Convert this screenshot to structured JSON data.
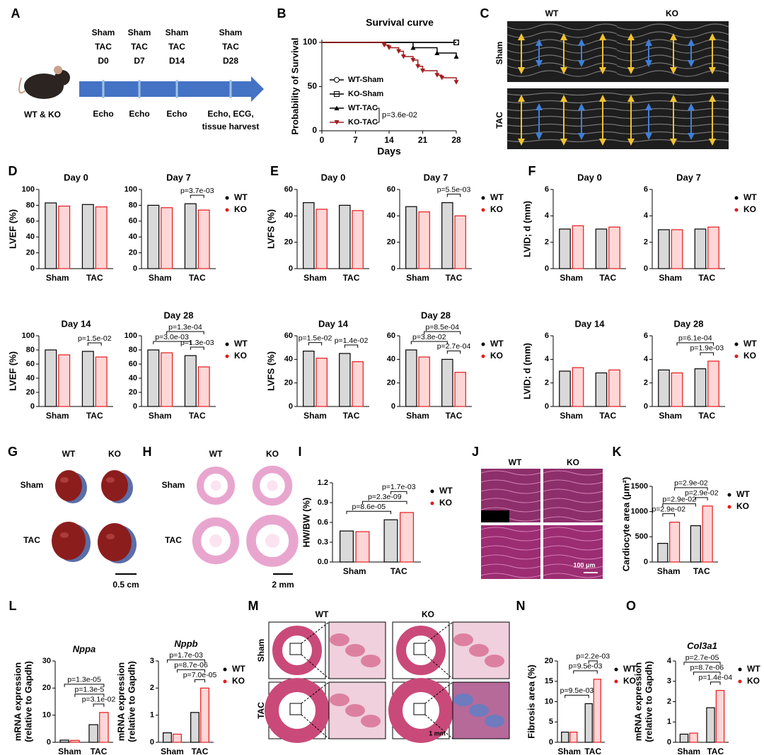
{
  "panel_labels": [
    "A",
    "B",
    "C",
    "D",
    "E",
    "F",
    "G",
    "H",
    "I",
    "J",
    "K",
    "L",
    "M",
    "N",
    "O"
  ],
  "timeline": {
    "group": "WT & KO",
    "points": [
      {
        "labels": [
          "Sham",
          "TAC",
          "D0"
        ],
        "below": [
          "Echo"
        ]
      },
      {
        "labels": [
          "Sham",
          "TAC",
          "D7"
        ],
        "below": [
          "Echo"
        ]
      },
      {
        "labels": [
          "Sham",
          "TAC",
          "D14"
        ],
        "below": [
          "Echo"
        ]
      },
      {
        "labels": [
          "Sham",
          "TAC",
          "D28"
        ],
        "below": [
          "Echo, ECG,",
          "tissue harvest"
        ]
      }
    ]
  },
  "echo": {
    "columns": [
      "WT",
      "KO"
    ],
    "rows": [
      "Sham",
      "TAC"
    ]
  },
  "hearts": {
    "columns": [
      "WT",
      "KO"
    ],
    "rows": [
      "Sham",
      "TAC"
    ],
    "scale": "0.5 cm"
  },
  "sections": {
    "columns": [
      "WT",
      "KO"
    ],
    "rows": [
      "Sham",
      "TAC"
    ],
    "scale": "2 mm"
  },
  "histology": {
    "columns": [
      "WT",
      "KO"
    ],
    "rows": [
      "Sham",
      "TAC"
    ],
    "scale": "100 μm"
  },
  "trichrome": {
    "columns": [
      "WT",
      "KO"
    ],
    "rows": [
      "Sham",
      "TAC"
    ],
    "scale": "1 mm"
  },
  "chart_data": [
    {
      "type": "line",
      "title": "Survival curve",
      "xlabel": "Days",
      "ylabel": "Probability of Survival",
      "xlim": [
        0,
        28
      ],
      "xticks": [
        0,
        7,
        14,
        21,
        28
      ],
      "ylim": [
        0,
        100
      ],
      "yticks": [
        0,
        50,
        100
      ],
      "series": [
        {
          "name": "WT-Sham",
          "color": "#000000",
          "marker": "circle",
          "x": [
            0,
            28
          ],
          "values": [
            100,
            100
          ]
        },
        {
          "name": "KO-Sham",
          "color": "#000000",
          "marker": "square",
          "x": [
            0,
            28
          ],
          "values": [
            100,
            100
          ]
        },
        {
          "name": "WT-TAC",
          "color": "#000000",
          "marker": "triangle",
          "x": [
            0,
            19,
            24,
            28
          ],
          "values": [
            100,
            94,
            88,
            84
          ]
        },
        {
          "name": "KO-TAC",
          "color": "#a11d21",
          "marker": "triangle-down",
          "x": [
            0,
            13,
            14,
            16,
            17,
            19,
            20,
            21,
            24,
            25,
            28
          ],
          "values": [
            100,
            97,
            94,
            90,
            84,
            80,
            73,
            68,
            63,
            60,
            55
          ]
        }
      ],
      "annotation": {
        "text": "p=3.6e-02",
        "between": [
          2,
          3
        ]
      }
    },
    {
      "type": "bar",
      "title": "Day 0",
      "ylabel": "LVEF (%)",
      "categories": [
        "Sham",
        "TAC"
      ],
      "ylim": [
        0,
        100
      ],
      "yticks": [
        0,
        20,
        40,
        60,
        80,
        100
      ],
      "series": [
        {
          "color": "#000000",
          "fill": "#d9d9d9",
          "values": [
            83,
            81
          ]
        },
        {
          "color": "#e41a1c",
          "fill": "#ffd6d6",
          "values": [
            79,
            78
          ]
        }
      ],
      "annotations": []
    },
    {
      "type": "bar",
      "title": "Day 7",
      "categories": [
        "Sham",
        "TAC"
      ],
      "ylim": [
        0,
        100
      ],
      "yticks": [
        0,
        20,
        40,
        60,
        80,
        100
      ],
      "series": [
        {
          "name": "WT",
          "color": "#000000",
          "fill": "#d9d9d9",
          "values": [
            80,
            82
          ]
        },
        {
          "name": "KO",
          "color": "#e41a1c",
          "fill": "#ffd6d6",
          "values": [
            77,
            74
          ]
        }
      ],
      "annotations": [
        {
          "text": "p=3.7e-03",
          "between": [
            2,
            3
          ]
        }
      ]
    },
    {
      "type": "bar",
      "title": "Day 14",
      "ylabel": "LVEF (%)",
      "categories": [
        "Sham",
        "TAC"
      ],
      "ylim": [
        0,
        100
      ],
      "yticks": [
        0,
        20,
        40,
        60,
        80,
        100
      ],
      "series": [
        {
          "color": "#000000",
          "fill": "#d9d9d9",
          "values": [
            80,
            78
          ]
        },
        {
          "color": "#e41a1c",
          "fill": "#ffd6d6",
          "values": [
            73,
            70
          ]
        }
      ],
      "annotations": [
        {
          "text": "p=1.5e-02",
          "between": [
            2,
            3
          ]
        }
      ]
    },
    {
      "type": "bar",
      "title": "Day 28",
      "categories": [
        "Sham",
        "TAC"
      ],
      "ylim": [
        0,
        100
      ],
      "yticks": [
        0,
        20,
        40,
        60,
        80,
        100
      ],
      "series": [
        {
          "name": "WT",
          "color": "#000000",
          "fill": "#d9d9d9",
          "values": [
            80,
            72
          ]
        },
        {
          "name": "KO",
          "color": "#e41a1c",
          "fill": "#ffd6d6",
          "values": [
            76,
            56
          ]
        }
      ],
      "annotations": [
        {
          "text": "p=3.0e-03",
          "between": [
            0,
            2
          ]
        },
        {
          "text": "p=1.3e-03",
          "between": [
            2,
            3
          ]
        },
        {
          "text": "p=1.3e-04",
          "between": [
            1,
            3
          ]
        }
      ]
    },
    {
      "type": "bar",
      "title": "Day 0",
      "ylabel": "LVFS (%)",
      "categories": [
        "Sham",
        "TAC"
      ],
      "ylim": [
        0,
        60
      ],
      "yticks": [
        0,
        20,
        40,
        60
      ],
      "series": [
        {
          "color": "#000000",
          "fill": "#d9d9d9",
          "values": [
            50,
            48
          ]
        },
        {
          "color": "#e41a1c",
          "fill": "#ffd6d6",
          "values": [
            45,
            44
          ]
        }
      ],
      "annotations": []
    },
    {
      "type": "bar",
      "title": "Day 7",
      "categories": [
        "Sham",
        "TAC"
      ],
      "ylim": [
        0,
        60
      ],
      "yticks": [
        0,
        20,
        40,
        60
      ],
      "series": [
        {
          "name": "WT",
          "color": "#000000",
          "fill": "#d9d9d9",
          "values": [
            47,
            50
          ]
        },
        {
          "name": "KO",
          "color": "#e41a1c",
          "fill": "#ffd6d6",
          "values": [
            43,
            40
          ]
        }
      ],
      "annotations": [
        {
          "text": "p=5.5e-03",
          "between": [
            2,
            3
          ]
        }
      ]
    },
    {
      "type": "bar",
      "title": "Day 14",
      "ylabel": "LVFS (%)",
      "categories": [
        "Sham",
        "TAC"
      ],
      "ylim": [
        0,
        60
      ],
      "yticks": [
        0,
        20,
        40,
        60
      ],
      "series": [
        {
          "color": "#000000",
          "fill": "#d9d9d9",
          "values": [
            47,
            45
          ]
        },
        {
          "color": "#e41a1c",
          "fill": "#ffd6d6",
          "values": [
            41,
            38
          ]
        }
      ],
      "annotations": [
        {
          "text": "p=1.5e-02",
          "between": [
            0,
            1
          ]
        },
        {
          "text": "p=1.4e-02",
          "between": [
            2,
            3
          ]
        }
      ]
    },
    {
      "type": "bar",
      "title": "Day 28",
      "categories": [
        "Sham",
        "TAC"
      ],
      "ylim": [
        0,
        60
      ],
      "yticks": [
        0,
        20,
        40,
        60
      ],
      "series": [
        {
          "name": "WT",
          "color": "#000000",
          "fill": "#d9d9d9",
          "values": [
            48,
            40
          ]
        },
        {
          "name": "KO",
          "color": "#e41a1c",
          "fill": "#ffd6d6",
          "values": [
            42,
            29
          ]
        }
      ],
      "annotations": [
        {
          "text": "p=3.8e-02",
          "between": [
            0,
            2
          ]
        },
        {
          "text": "p=2.7e-04",
          "between": [
            2,
            3
          ]
        },
        {
          "text": "p=8.5e-04",
          "between": [
            1,
            3
          ]
        }
      ]
    },
    {
      "type": "bar",
      "title": "Day 0",
      "ylabel": "LVID; d (mm)",
      "categories": [
        "Sham",
        "TAC"
      ],
      "ylim": [
        0,
        6
      ],
      "yticks": [
        0,
        2,
        4,
        6
      ],
      "series": [
        {
          "color": "#000000",
          "fill": "#d9d9d9",
          "values": [
            3.0,
            3.0
          ]
        },
        {
          "color": "#e41a1c",
          "fill": "#ffd6d6",
          "values": [
            3.25,
            3.15
          ]
        }
      ],
      "annotations": []
    },
    {
      "type": "bar",
      "title": "Day 7",
      "categories": [
        "Sham",
        "TAC"
      ],
      "ylim": [
        0,
        6
      ],
      "yticks": [
        0,
        2,
        4,
        6
      ],
      "series": [
        {
          "name": "WT",
          "color": "#000000",
          "fill": "#d9d9d9",
          "values": [
            2.95,
            3.0
          ]
        },
        {
          "name": "KO",
          "color": "#e41a1c",
          "fill": "#ffd6d6",
          "values": [
            2.95,
            3.15
          ]
        }
      ],
      "annotations": []
    },
    {
      "type": "bar",
      "title": "Day 14",
      "ylabel": "LVID; d (mm)",
      "categories": [
        "Sham",
        "TAC"
      ],
      "ylim": [
        0,
        6
      ],
      "yticks": [
        0,
        2,
        4,
        6
      ],
      "series": [
        {
          "color": "#000000",
          "fill": "#d9d9d9",
          "values": [
            3.0,
            2.85
          ]
        },
        {
          "color": "#e41a1c",
          "fill": "#ffd6d6",
          "values": [
            3.3,
            3.1
          ]
        }
      ],
      "annotations": []
    },
    {
      "type": "bar",
      "title": "Day 28",
      "categories": [
        "Sham",
        "TAC"
      ],
      "ylim": [
        0,
        6
      ],
      "yticks": [
        0,
        2,
        4,
        6
      ],
      "series": [
        {
          "name": "WT",
          "color": "#000000",
          "fill": "#d9d9d9",
          "values": [
            3.1,
            3.2
          ]
        },
        {
          "name": "KO",
          "color": "#e41a1c",
          "fill": "#ffd6d6",
          "values": [
            2.85,
            3.85
          ]
        }
      ],
      "annotations": [
        {
          "text": "p=1.9e-03",
          "between": [
            2,
            3
          ]
        },
        {
          "text": "p=6.1e-04",
          "between": [
            1,
            3
          ]
        }
      ]
    },
    {
      "type": "bar",
      "ylabel": "HW/BW (%)",
      "categories": [
        "Sham",
        "TAC"
      ],
      "ylim": [
        0,
        1.2
      ],
      "yticks": [
        {
          "value": 0,
          "label": "0.0"
        },
        0.3,
        0.6,
        0.9,
        1.2
      ],
      "series": [
        {
          "name": "WT",
          "color": "#000000",
          "fill": "#d9d9d9",
          "values": [
            0.47,
            0.64
          ]
        },
        {
          "name": "KO",
          "color": "#e41a1c",
          "fill": "#ffd6d6",
          "values": [
            0.46,
            0.75
          ]
        }
      ],
      "annotations": [
        {
          "text": "p=8.6e-05",
          "between": [
            0,
            2
          ]
        },
        {
          "text": "p=2.3e-09",
          "between": [
            1,
            3
          ]
        },
        {
          "text": "p=1.7e-03",
          "between": [
            2,
            3
          ]
        }
      ]
    },
    {
      "type": "bar",
      "ylabel": "Cardiocyte area (μm²)",
      "categories": [
        "Sham",
        "TAC"
      ],
      "ylim": [
        0,
        1500
      ],
      "yticks": [
        0,
        500,
        1000,
        1500
      ],
      "series": [
        {
          "name": "WT",
          "color": "#000000",
          "fill": "#d9d9d9",
          "values": [
            370,
            720
          ]
        },
        {
          "name": "KO",
          "color": "#e41a1c",
          "fill": "#ffd6d6",
          "values": [
            790,
            1110
          ]
        }
      ],
      "annotations": [
        {
          "text": "p=2.9e-02",
          "between": [
            0,
            1
          ]
        },
        {
          "text": "p=2.9e-02",
          "between": [
            0,
            2
          ]
        },
        {
          "text": "p=2.9e-02",
          "between": [
            2,
            3
          ]
        },
        {
          "text": "p=2.9e-02",
          "between": [
            1,
            3
          ]
        }
      ]
    },
    {
      "type": "bar",
      "title": "Nppa",
      "ylabel": [
        "mRNA expression",
        "(relative to Gapdh)"
      ],
      "categories": [
        "Sham",
        "TAC"
      ],
      "ylim": [
        0,
        30
      ],
      "yticks": [
        0,
        10,
        20,
        30
      ],
      "series": [
        {
          "color": "#000000",
          "fill": "#d9d9d9",
          "values": [
            0.8,
            6.5
          ]
        },
        {
          "color": "#e41a1c",
          "fill": "#ffd6d6",
          "values": [
            0.7,
            11
          ]
        }
      ],
      "annotations": [
        {
          "text": "p=3.1e-02",
          "between": [
            2,
            3
          ]
        },
        {
          "text": "p=1.3e-5",
          "between": [
            1,
            3
          ]
        },
        {
          "text": "p=1.3e-05",
          "between": [
            0,
            3
          ]
        }
      ]
    },
    {
      "type": "bar",
      "title": "Nppb",
      "ylabel": [
        "mRNA expression",
        "(relative to Gapdh)"
      ],
      "categories": [
        "Sham",
        "TAC"
      ],
      "ylim": [
        0,
        3
      ],
      "yticks": [
        0,
        1,
        2,
        3
      ],
      "series": [
        {
          "name": "WT",
          "color": "#000000",
          "fill": "#d9d9d9",
          "values": [
            0.35,
            1.1
          ]
        },
        {
          "name": "KO",
          "color": "#e41a1c",
          "fill": "#ffd6d6",
          "values": [
            0.3,
            2.0
          ]
        }
      ],
      "annotations": [
        {
          "text": "p=7.0e-05",
          "between": [
            2,
            3
          ]
        },
        {
          "text": "p=8.7e-06",
          "between": [
            1,
            3
          ]
        },
        {
          "text": "p=1.7e-03",
          "between": [
            0,
            3
          ]
        }
      ]
    },
    {
      "type": "bar",
      "ylabel": "Fibrosis area (%)",
      "categories": [
        "Sham",
        "TAC"
      ],
      "ylim": [
        0,
        20
      ],
      "yticks": [
        0,
        5,
        10,
        15,
        20
      ],
      "series": [
        {
          "name": "WT",
          "color": "#000000",
          "fill": "#d9d9d9",
          "values": [
            2.5,
            9.5
          ]
        },
        {
          "name": "KO",
          "color": "#e41a1c",
          "fill": "#ffd6d6",
          "values": [
            2.5,
            15.5
          ]
        }
      ],
      "annotations": [
        {
          "text": "p=9.5e-03",
          "between": [
            0,
            2
          ]
        },
        {
          "text": "p=9.5e-03",
          "between": [
            1,
            3
          ]
        },
        {
          "text": "p=2.2e-03",
          "between": [
            2,
            3
          ]
        }
      ]
    },
    {
      "type": "bar",
      "title": "Col3a1",
      "ylabel": [
        "mRNA expression",
        "(relative to Gapdh)"
      ],
      "categories": [
        "Sham",
        "TAC"
      ],
      "ylim": [
        0,
        4
      ],
      "yticks": [
        0,
        1,
        2,
        3,
        4
      ],
      "series": [
        {
          "name": "WT",
          "color": "#000000",
          "fill": "#d9d9d9",
          "values": [
            0.4,
            1.7
          ]
        },
        {
          "name": "KO",
          "color": "#e41a1c",
          "fill": "#ffd6d6",
          "values": [
            0.45,
            2.55
          ]
        }
      ],
      "annotations": [
        {
          "text": "p=1.4e-04",
          "between": [
            2,
            3
          ]
        },
        {
          "text": "p=8.7e-06",
          "between": [
            1,
            3
          ]
        },
        {
          "text": "p=2.7e-05",
          "between": [
            0,
            3
          ]
        }
      ]
    }
  ]
}
